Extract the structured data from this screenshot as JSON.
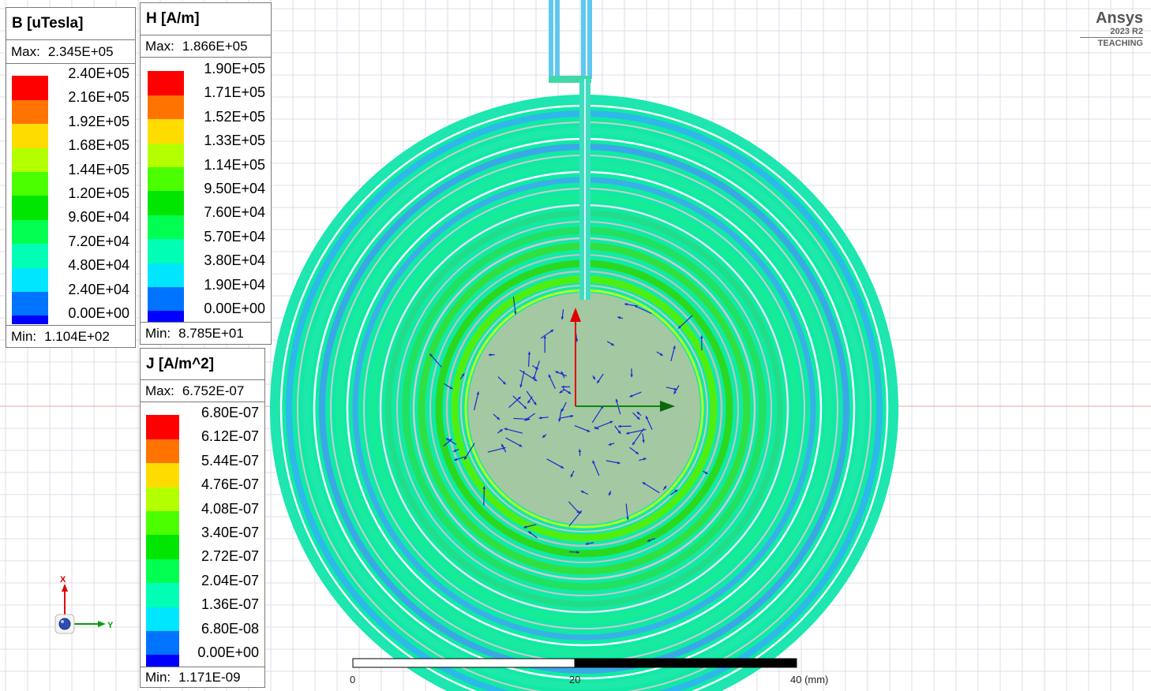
{
  "legends": {
    "b": {
      "title": "B [uTesla]",
      "max_label": "Max:",
      "max_value": "2.345E+05",
      "min_label": "Min:",
      "min_value": "1.104E+02",
      "levels": [
        "2.40E+05",
        "2.16E+05",
        "1.92E+05",
        "1.68E+05",
        "1.44E+05",
        "1.20E+05",
        "9.60E+04",
        "7.20E+04",
        "4.80E+04",
        "2.40E+04",
        "0.00E+00"
      ]
    },
    "h": {
      "title": "H [A/m]",
      "max_label": "Max:",
      "max_value": "1.866E+05",
      "min_label": "Min:",
      "min_value": "8.785E+01",
      "levels": [
        "1.90E+05",
        "1.71E+05",
        "1.52E+05",
        "1.33E+05",
        "1.14E+05",
        "9.50E+04",
        "7.60E+04",
        "5.70E+04",
        "3.80E+04",
        "1.90E+04",
        "0.00E+00"
      ]
    },
    "j": {
      "title": "J [A/m^2]",
      "max_label": "Max:",
      "max_value": "6.752E-07",
      "min_label": "Min:",
      "min_value": "1.171E-09",
      "levels": [
        "6.80E-07",
        "6.12E-07",
        "5.44E-07",
        "4.76E-07",
        "4.08E-07",
        "3.40E-07",
        "2.72E-07",
        "2.04E-07",
        "1.36E-07",
        "6.80E-08",
        "0.00E+00"
      ]
    },
    "swatch_colors": [
      "#ff0000",
      "#ff7300",
      "#ffdc00",
      "#b4ff00",
      "#4cff00",
      "#00e600",
      "#00ff50",
      "#00ffb4",
      "#00e6ff",
      "#0073ff",
      "#0000ff"
    ]
  },
  "branding": {
    "name": "Ansys",
    "version": "2023 R2",
    "edition": "TEACHING"
  },
  "scale_bar": {
    "labels": [
      "0",
      "20",
      "40 (mm)"
    ]
  },
  "triad": {
    "x_label": "X",
    "y_label": "Y"
  }
}
